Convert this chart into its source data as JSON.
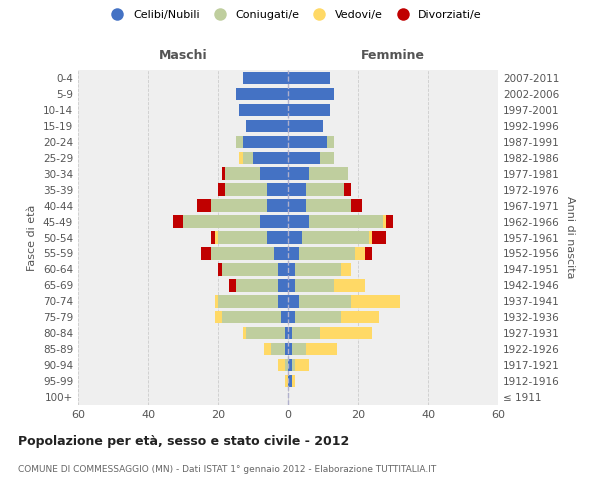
{
  "age_groups": [
    "100+",
    "95-99",
    "90-94",
    "85-89",
    "80-84",
    "75-79",
    "70-74",
    "65-69",
    "60-64",
    "55-59",
    "50-54",
    "45-49",
    "40-44",
    "35-39",
    "30-34",
    "25-29",
    "20-24",
    "15-19",
    "10-14",
    "5-9",
    "0-4"
  ],
  "birth_years": [
    "≤ 1911",
    "1912-1916",
    "1917-1921",
    "1922-1926",
    "1927-1931",
    "1932-1936",
    "1937-1941",
    "1942-1946",
    "1947-1951",
    "1952-1956",
    "1957-1961",
    "1962-1966",
    "1967-1971",
    "1972-1976",
    "1977-1981",
    "1982-1986",
    "1987-1991",
    "1992-1996",
    "1997-2001",
    "2002-2006",
    "2007-2011"
  ],
  "males_celibi": [
    0,
    0,
    0,
    1,
    1,
    2,
    3,
    3,
    3,
    4,
    6,
    8,
    6,
    6,
    8,
    10,
    13,
    12,
    14,
    15,
    13
  ],
  "males_coniugati": [
    0,
    0,
    1,
    4,
    11,
    17,
    17,
    12,
    16,
    18,
    14,
    22,
    16,
    12,
    10,
    3,
    2,
    0,
    0,
    0,
    0
  ],
  "males_vedovi": [
    0,
    1,
    2,
    2,
    1,
    2,
    1,
    0,
    0,
    0,
    1,
    0,
    0,
    0,
    0,
    1,
    0,
    0,
    0,
    0,
    0
  ],
  "males_divorziati": [
    0,
    0,
    0,
    0,
    0,
    0,
    0,
    2,
    1,
    3,
    1,
    3,
    4,
    2,
    1,
    0,
    0,
    0,
    0,
    0,
    0
  ],
  "fem_nubili": [
    0,
    1,
    1,
    1,
    1,
    2,
    3,
    2,
    2,
    3,
    4,
    6,
    5,
    5,
    6,
    9,
    11,
    10,
    12,
    13,
    12
  ],
  "fem_coniugate": [
    0,
    0,
    1,
    4,
    8,
    13,
    15,
    11,
    13,
    16,
    19,
    21,
    13,
    11,
    11,
    4,
    2,
    0,
    0,
    0,
    0
  ],
  "fem_vedove": [
    0,
    1,
    4,
    9,
    15,
    11,
    14,
    9,
    3,
    3,
    1,
    1,
    0,
    0,
    0,
    0,
    0,
    0,
    0,
    0,
    0
  ],
  "fem_divorziate": [
    0,
    0,
    0,
    0,
    0,
    0,
    0,
    0,
    0,
    2,
    4,
    2,
    3,
    2,
    0,
    0,
    0,
    0,
    0,
    0,
    0
  ],
  "color_celibi": "#4472C4",
  "color_coniugati": "#BFCE9E",
  "color_vedovi": "#FFD966",
  "color_divorziati": "#C00000",
  "title1": "Popolazione per età, sesso e stato civile - 2012",
  "title2": "COMUNE DI COMMESSAGGIO (MN) - Dati ISTAT 1° gennaio 2012 - Elaborazione TUTTITALIA.IT",
  "label_maschi": "Maschi",
  "label_femmine": "Femmine",
  "ylabel_left": "Fasce di età",
  "ylabel_right": "Anni di nascita",
  "legend_labels": [
    "Celibi/Nubili",
    "Coniugati/e",
    "Vedovi/e",
    "Divorziati/e"
  ],
  "xlim": 60,
  "bg_color": "#ffffff",
  "plot_bg": "#efefef",
  "grid_color": "#cccccc"
}
